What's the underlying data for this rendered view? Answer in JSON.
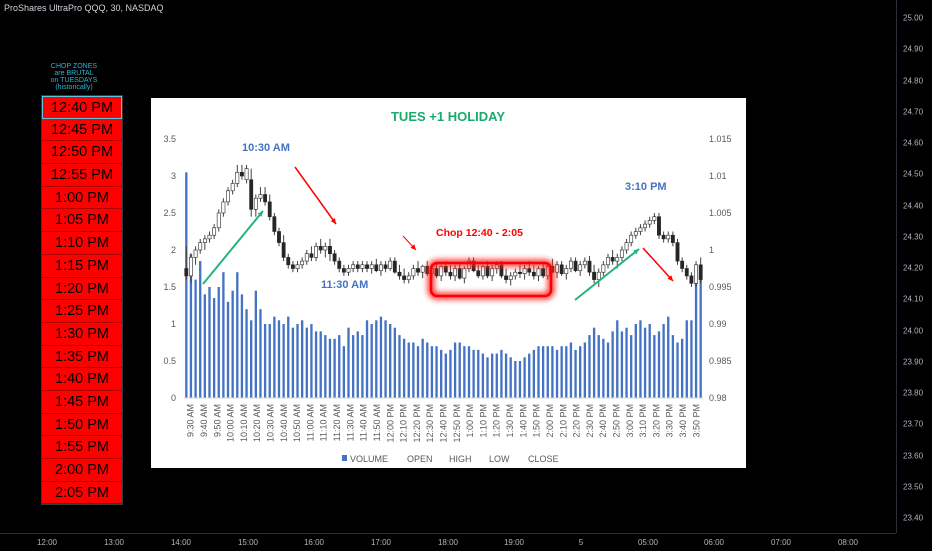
{
  "header": {
    "symbol": "ProShares UltraPro QQQ, 30, NASDAQ"
  },
  "price_axis": {
    "labels": [
      "25.00",
      "24.90",
      "24.80",
      "24.70",
      "24.60",
      "24.50",
      "24.40",
      "24.30",
      "24.20",
      "24.10",
      "24.00",
      "23.90",
      "23.80",
      "23.70",
      "23.60",
      "23.50",
      "23.40"
    ]
  },
  "time_axis": {
    "labels": [
      "12:00",
      "13:00",
      "14:00",
      "15:00",
      "16:00",
      "17:00",
      "18:00",
      "19:00",
      "5",
      "05:00",
      "06:00",
      "07:00",
      "08:00"
    ]
  },
  "side": {
    "note_lines": [
      "CHOP ZONES",
      "are BRUTAL",
      "on TUESDAYS",
      "(historically)"
    ],
    "times": [
      "12:40 PM",
      "12:45 PM",
      "12:50 PM",
      "12:55 PM",
      "1:00 PM",
      "1:05 PM",
      "1:10 PM",
      "1:15 PM",
      "1:20 PM",
      "1:25 PM",
      "1:30 PM",
      "1:35 PM",
      "1:40 PM",
      "1:45 PM",
      "1:50 PM",
      "1:55 PM",
      "2:00 PM",
      "2:05 PM"
    ]
  },
  "colors": {
    "volume": "#4472c4",
    "title": "#1aab6d",
    "annotation_red": "#ff0000",
    "annotation_blue": "#4472c4",
    "arrow_green": "#25b47a",
    "candle_line": "#404040"
  },
  "chart_data": {
    "type": "bar",
    "title": "TUES +1 HOLIDAY",
    "legend": {
      "position": "bottom",
      "entries": [
        "VOLUME",
        "OPEN",
        "HIGH",
        "LOW",
        "CLOSE"
      ]
    },
    "y_left": {
      "lim": [
        0,
        3.5
      ],
      "ticks": [
        "0",
        "0.5",
        "1",
        "1.5",
        "2",
        "2.5",
        "3",
        "3.5"
      ]
    },
    "y_right": {
      "lim": [
        0.98,
        1.015
      ],
      "ticks": [
        "0.98",
        "0.985",
        "0.99",
        "0.995",
        "1",
        "1.005",
        "1.01",
        "1.015"
      ]
    },
    "x_tick_labels": [
      "9:30 AM",
      "9:40 AM",
      "9:50 AM",
      "10:00 AM",
      "10:10 AM",
      "10:20 AM",
      "10:30 AM",
      "10:40 AM",
      "10:50 AM",
      "11:00 AM",
      "11:10 AM",
      "11:20 AM",
      "11:30 AM",
      "11:40 AM",
      "11:50 AM",
      "12:00 PM",
      "12:10 PM",
      "12:20 PM",
      "12:30 PM",
      "12:40 PM",
      "12:50 PM",
      "1:00 PM",
      "1:10 PM",
      "1:20 PM",
      "1:30 PM",
      "1:40 PM",
      "1:50 PM",
      "2:00 PM",
      "2:10 PM",
      "2:20 PM",
      "2:30 PM",
      "2:40 PM",
      "2:50 PM",
      "3:00 PM",
      "3:10 PM",
      "3:20 PM",
      "3:30 PM",
      "3:40 PM",
      "3:50 PM"
    ],
    "volume": [
      3.05,
      1.95,
      1.6,
      1.85,
      1.4,
      1.5,
      1.35,
      1.5,
      1.7,
      1.3,
      1.45,
      1.7,
      1.4,
      1.2,
      1.05,
      1.45,
      1.2,
      1.0,
      1.0,
      1.1,
      1.05,
      1.0,
      1.1,
      0.95,
      1.0,
      1.05,
      0.95,
      1.0,
      0.9,
      0.9,
      0.85,
      0.8,
      0.8,
      0.85,
      0.7,
      0.95,
      0.85,
      0.9,
      0.85,
      1.05,
      1.0,
      1.05,
      1.1,
      1.05,
      1.0,
      0.95,
      0.85,
      0.8,
      0.75,
      0.75,
      0.7,
      0.8,
      0.75,
      0.7,
      0.7,
      0.65,
      0.6,
      0.65,
      0.75,
      0.75,
      0.7,
      0.7,
      0.65,
      0.65,
      0.6,
      0.55,
      0.6,
      0.6,
      0.65,
      0.6,
      0.55,
      0.5,
      0.5,
      0.55,
      0.6,
      0.65,
      0.7,
      0.7,
      0.7,
      0.7,
      0.65,
      0.7,
      0.7,
      0.75,
      0.65,
      0.7,
      0.75,
      0.85,
      0.95,
      0.85,
      0.8,
      0.75,
      0.9,
      1.05,
      0.9,
      0.95,
      0.85,
      1.0,
      1.05,
      0.95,
      1.0,
      0.85,
      0.9,
      1.0,
      1.1,
      0.85,
      0.75,
      0.8,
      1.05,
      1.05,
      1.75,
      1.8
    ],
    "candles": [
      {
        "o": 0.9975,
        "h": 1.0005,
        "l": 0.996,
        "c": 0.9965
      },
      {
        "o": 0.9965,
        "h": 0.9995,
        "l": 0.9955,
        "c": 0.999
      },
      {
        "o": 0.999,
        "h": 1.0005,
        "l": 0.998,
        "c": 1.0
      },
      {
        "o": 1.0,
        "h": 1.0015,
        "l": 0.9995,
        "c": 1.001
      },
      {
        "o": 1.001,
        "h": 1.002,
        "l": 1.0,
        "c": 1.0015
      },
      {
        "o": 1.0015,
        "h": 1.0025,
        "l": 1.001,
        "c": 1.002
      },
      {
        "o": 1.002,
        "h": 1.0035,
        "l": 1.0015,
        "c": 1.003
      },
      {
        "o": 1.003,
        "h": 1.0055,
        "l": 1.0025,
        "c": 1.005
      },
      {
        "o": 1.005,
        "h": 1.007,
        "l": 1.0045,
        "c": 1.0065
      },
      {
        "o": 1.0065,
        "h": 1.0085,
        "l": 1.006,
        "c": 1.008
      },
      {
        "o": 1.008,
        "h": 1.0095,
        "l": 1.0075,
        "c": 1.009
      },
      {
        "o": 1.009,
        "h": 1.0115,
        "l": 1.0085,
        "c": 1.0105
      },
      {
        "o": 1.0105,
        "h": 1.0115,
        "l": 1.0095,
        "c": 1.01
      },
      {
        "o": 1.0095,
        "h": 1.0115,
        "l": 1.009,
        "c": 1.011
      },
      {
        "o": 1.0095,
        "h": 1.011,
        "l": 1.0045,
        "c": 1.0055
      },
      {
        "o": 1.0055,
        "h": 1.0075,
        "l": 1.0045,
        "c": 1.007
      },
      {
        "o": 1.007,
        "h": 1.0085,
        "l": 1.0065,
        "c": 1.0075
      },
      {
        "o": 1.0075,
        "h": 1.0085,
        "l": 1.006,
        "c": 1.0065
      },
      {
        "o": 1.0065,
        "h": 1.0075,
        "l": 1.004,
        "c": 1.0045
      },
      {
        "o": 1.0045,
        "h": 1.005,
        "l": 1.002,
        "c": 1.0025
      },
      {
        "o": 1.0025,
        "h": 1.003,
        "l": 1.0005,
        "c": 1.001
      },
      {
        "o": 1.001,
        "h": 1.002,
        "l": 0.9985,
        "c": 0.999
      },
      {
        "o": 0.999,
        "h": 0.9995,
        "l": 0.9975,
        "c": 0.998
      },
      {
        "o": 0.998,
        "h": 0.9985,
        "l": 0.997,
        "c": 0.9975
      },
      {
        "o": 0.9975,
        "h": 0.9985,
        "l": 0.997,
        "c": 0.998
      },
      {
        "o": 0.998,
        "h": 0.999,
        "l": 0.9975,
        "c": 0.9985
      },
      {
        "o": 0.9985,
        "h": 1.0,
        "l": 0.998,
        "c": 0.9995
      },
      {
        "o": 0.9995,
        "h": 1.0005,
        "l": 0.9985,
        "c": 0.999
      },
      {
        "o": 0.999,
        "h": 1.001,
        "l": 0.9985,
        "c": 1.0005
      },
      {
        "o": 1.0005,
        "h": 1.0015,
        "l": 0.9995,
        "c": 1.0
      },
      {
        "o": 1.0,
        "h": 1.001,
        "l": 0.999,
        "c": 1.0005
      },
      {
        "o": 1.0005,
        "h": 1.0015,
        "l": 0.9985,
        "c": 0.9995
      },
      {
        "o": 0.9995,
        "h": 1.0,
        "l": 0.998,
        "c": 0.9985
      },
      {
        "o": 0.9985,
        "h": 0.999,
        "l": 0.997,
        "c": 0.9975
      },
      {
        "o": 0.9975,
        "h": 0.998,
        "l": 0.9965,
        "c": 0.997
      },
      {
        "o": 0.997,
        "h": 0.998,
        "l": 0.9965,
        "c": 0.9975
      },
      {
        "o": 0.9975,
        "h": 0.9985,
        "l": 0.997,
        "c": 0.998
      },
      {
        "o": 0.998,
        "h": 0.9985,
        "l": 0.997,
        "c": 0.9975
      },
      {
        "o": 0.9975,
        "h": 0.9985,
        "l": 0.997,
        "c": 0.998
      },
      {
        "o": 0.998,
        "h": 0.9985,
        "l": 0.997,
        "c": 0.9975
      },
      {
        "o": 0.9975,
        "h": 0.9985,
        "l": 0.9968,
        "c": 0.998
      },
      {
        "o": 0.998,
        "h": 0.9988,
        "l": 0.997,
        "c": 0.9972
      },
      {
        "o": 0.9972,
        "h": 0.9985,
        "l": 0.9965,
        "c": 0.998
      },
      {
        "o": 0.998,
        "h": 0.9985,
        "l": 0.997,
        "c": 0.9975
      },
      {
        "o": 0.9975,
        "h": 0.999,
        "l": 0.9972,
        "c": 0.9985
      },
      {
        "o": 0.9985,
        "h": 0.999,
        "l": 0.9968,
        "c": 0.997
      },
      {
        "o": 0.997,
        "h": 0.998,
        "l": 0.996,
        "c": 0.9965
      },
      {
        "o": 0.9965,
        "h": 0.9975,
        "l": 0.9955,
        "c": 0.996
      },
      {
        "o": 0.996,
        "h": 0.997,
        "l": 0.9955,
        "c": 0.9965
      },
      {
        "o": 0.9965,
        "h": 0.998,
        "l": 0.996,
        "c": 0.9975
      },
      {
        "o": 0.9975,
        "h": 0.9985,
        "l": 0.9965,
        "c": 0.997
      },
      {
        "o": 0.997,
        "h": 0.998,
        "l": 0.9962,
        "c": 0.9978
      },
      {
        "o": 0.9978,
        "h": 0.9985,
        "l": 0.9965,
        "c": 0.9968
      },
      {
        "o": 0.9968,
        "h": 0.9978,
        "l": 0.996,
        "c": 0.9975
      },
      {
        "o": 0.9975,
        "h": 0.9982,
        "l": 0.9962,
        "c": 0.9965
      },
      {
        "o": 0.9965,
        "h": 0.998,
        "l": 0.9958,
        "c": 0.9978
      },
      {
        "o": 0.9978,
        "h": 0.9985,
        "l": 0.9965,
        "c": 0.997
      },
      {
        "o": 0.997,
        "h": 0.998,
        "l": 0.996,
        "c": 0.9965
      },
      {
        "o": 0.9965,
        "h": 0.998,
        "l": 0.9958,
        "c": 0.9975
      },
      {
        "o": 0.9975,
        "h": 0.9982,
        "l": 0.996,
        "c": 0.9962
      },
      {
        "o": 0.9962,
        "h": 0.9978,
        "l": 0.9955,
        "c": 0.9975
      },
      {
        "o": 0.9975,
        "h": 0.999,
        "l": 0.997,
        "c": 0.9985
      },
      {
        "o": 0.9985,
        "h": 0.999,
        "l": 0.997,
        "c": 0.9972
      },
      {
        "o": 0.9972,
        "h": 0.998,
        "l": 0.9962,
        "c": 0.9965
      },
      {
        "o": 0.9965,
        "h": 0.998,
        "l": 0.996,
        "c": 0.9978
      },
      {
        "o": 0.9978,
        "h": 0.9985,
        "l": 0.9962,
        "c": 0.9965
      },
      {
        "o": 0.9965,
        "h": 0.998,
        "l": 0.9958,
        "c": 0.9975
      },
      {
        "o": 0.9975,
        "h": 0.9985,
        "l": 0.9968,
        "c": 0.998
      },
      {
        "o": 0.998,
        "h": 0.9985,
        "l": 0.9962,
        "c": 0.9965
      },
      {
        "o": 0.9965,
        "h": 0.9975,
        "l": 0.9955,
        "c": 0.996
      },
      {
        "o": 0.996,
        "h": 0.997,
        "l": 0.9952,
        "c": 0.9965
      },
      {
        "o": 0.9965,
        "h": 0.9975,
        "l": 0.996,
        "c": 0.997
      },
      {
        "o": 0.997,
        "h": 0.998,
        "l": 0.9962,
        "c": 0.9968
      },
      {
        "o": 0.9968,
        "h": 0.998,
        "l": 0.996,
        "c": 0.9975
      },
      {
        "o": 0.9975,
        "h": 0.9985,
        "l": 0.9965,
        "c": 0.997
      },
      {
        "o": 0.997,
        "h": 0.998,
        "l": 0.996,
        "c": 0.9965
      },
      {
        "o": 0.9965,
        "h": 0.9978,
        "l": 0.9958,
        "c": 0.9975
      },
      {
        "o": 0.9975,
        "h": 0.9982,
        "l": 0.9962,
        "c": 0.9965
      },
      {
        "o": 0.9965,
        "h": 0.998,
        "l": 0.996,
        "c": 0.9978
      },
      {
        "o": 0.9978,
        "h": 0.9988,
        "l": 0.9968,
        "c": 0.997
      },
      {
        "o": 0.997,
        "h": 0.9985,
        "l": 0.9962,
        "c": 0.998
      },
      {
        "o": 0.998,
        "h": 0.9985,
        "l": 0.9965,
        "c": 0.9968
      },
      {
        "o": 0.9968,
        "h": 0.998,
        "l": 0.996,
        "c": 0.9975
      },
      {
        "o": 0.9975,
        "h": 0.999,
        "l": 0.997,
        "c": 0.9985
      },
      {
        "o": 0.9985,
        "h": 0.999,
        "l": 0.997,
        "c": 0.9972
      },
      {
        "o": 0.9972,
        "h": 0.9985,
        "l": 0.9965,
        "c": 0.998
      },
      {
        "o": 0.998,
        "h": 0.999,
        "l": 0.9975,
        "c": 0.9985
      },
      {
        "o": 0.9985,
        "h": 0.9992,
        "l": 0.9965,
        "c": 0.997
      },
      {
        "o": 0.997,
        "h": 0.998,
        "l": 0.9955,
        "c": 0.996
      },
      {
        "o": 0.996,
        "h": 0.9975,
        "l": 0.995,
        "c": 0.997
      },
      {
        "o": 0.997,
        "h": 0.9985,
        "l": 0.9965,
        "c": 0.998
      },
      {
        "o": 0.998,
        "h": 0.9995,
        "l": 0.9975,
        "c": 0.999
      },
      {
        "o": 0.999,
        "h": 1.0,
        "l": 0.998,
        "c": 0.9985
      },
      {
        "o": 0.9985,
        "h": 0.9995,
        "l": 0.9975,
        "c": 0.999
      },
      {
        "o": 0.999,
        "h": 1.0005,
        "l": 0.9985,
        "c": 1.0
      },
      {
        "o": 1.0,
        "h": 1.0015,
        "l": 0.9995,
        "c": 1.001
      },
      {
        "o": 1.001,
        "h": 1.0025,
        "l": 1.0005,
        "c": 1.002
      },
      {
        "o": 1.002,
        "h": 1.003,
        "l": 1.0015,
        "c": 1.0025
      },
      {
        "o": 1.0025,
        "h": 1.0035,
        "l": 1.002,
        "c": 1.003
      },
      {
        "o": 1.003,
        "h": 1.004,
        "l": 1.0025,
        "c": 1.0035
      },
      {
        "o": 1.0035,
        "h": 1.0045,
        "l": 1.003,
        "c": 1.004
      },
      {
        "o": 1.004,
        "h": 1.005,
        "l": 1.0035,
        "c": 1.0045
      },
      {
        "o": 1.0045,
        "h": 1.005,
        "l": 1.0015,
        "c": 1.002
      },
      {
        "o": 1.002,
        "h": 1.0025,
        "l": 1.001,
        "c": 1.0015
      },
      {
        "o": 1.0015,
        "h": 1.0025,
        "l": 1.001,
        "c": 1.002
      },
      {
        "o": 1.002,
        "h": 1.0025,
        "l": 1.0005,
        "c": 1.001
      },
      {
        "o": 1.001,
        "h": 1.0015,
        "l": 0.998,
        "c": 0.9985
      },
      {
        "o": 0.9985,
        "h": 0.999,
        "l": 0.997,
        "c": 0.9975
      },
      {
        "o": 0.9975,
        "h": 0.998,
        "l": 0.996,
        "c": 0.9965
      },
      {
        "o": 0.9965,
        "h": 0.997,
        "l": 0.995,
        "c": 0.9955
      },
      {
        "o": 0.9955,
        "h": 0.9985,
        "l": 0.995,
        "c": 0.998
      },
      {
        "o": 0.998,
        "h": 0.999,
        "l": 0.9955,
        "c": 0.996
      }
    ],
    "annotations": {
      "a1030": "10:30 AM",
      "a1130": "11:30 AM",
      "chop": "Chop 12:40 - 2:05",
      "a310": "3:10 PM"
    }
  }
}
